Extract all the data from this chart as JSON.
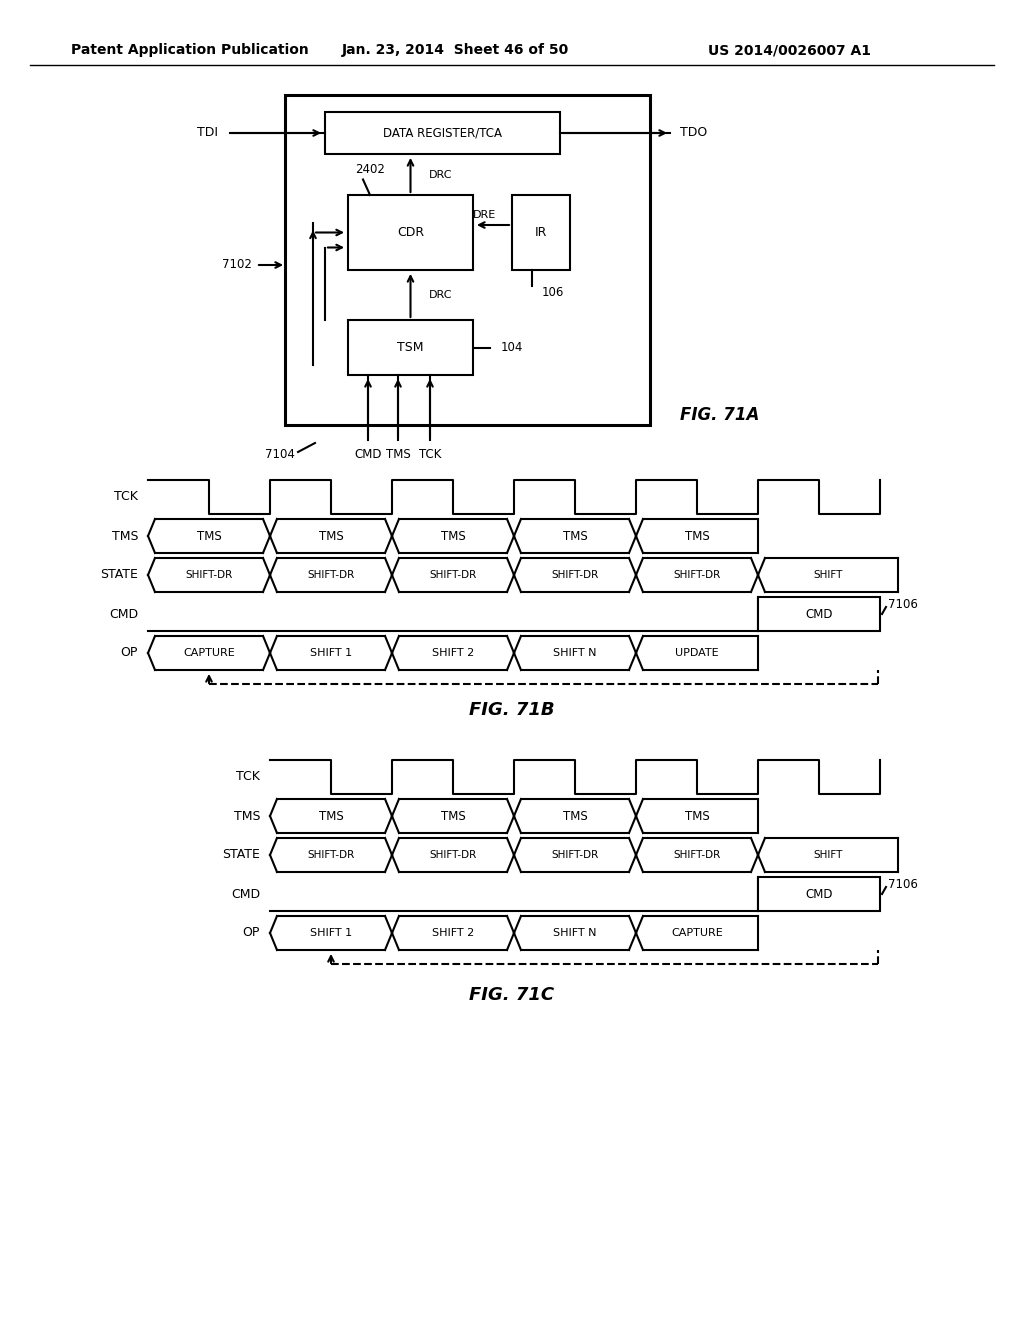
{
  "header_left": "Patent Application Publication",
  "header_mid": "Jan. 23, 2014  Sheet 46 of 50",
  "header_right": "US 2014/0026007 A1",
  "fig71a_label": "FIG. 71A",
  "fig71b_label": "FIG. 71B",
  "fig71c_label": "FIG. 71C",
  "bg_color": "#ffffff"
}
